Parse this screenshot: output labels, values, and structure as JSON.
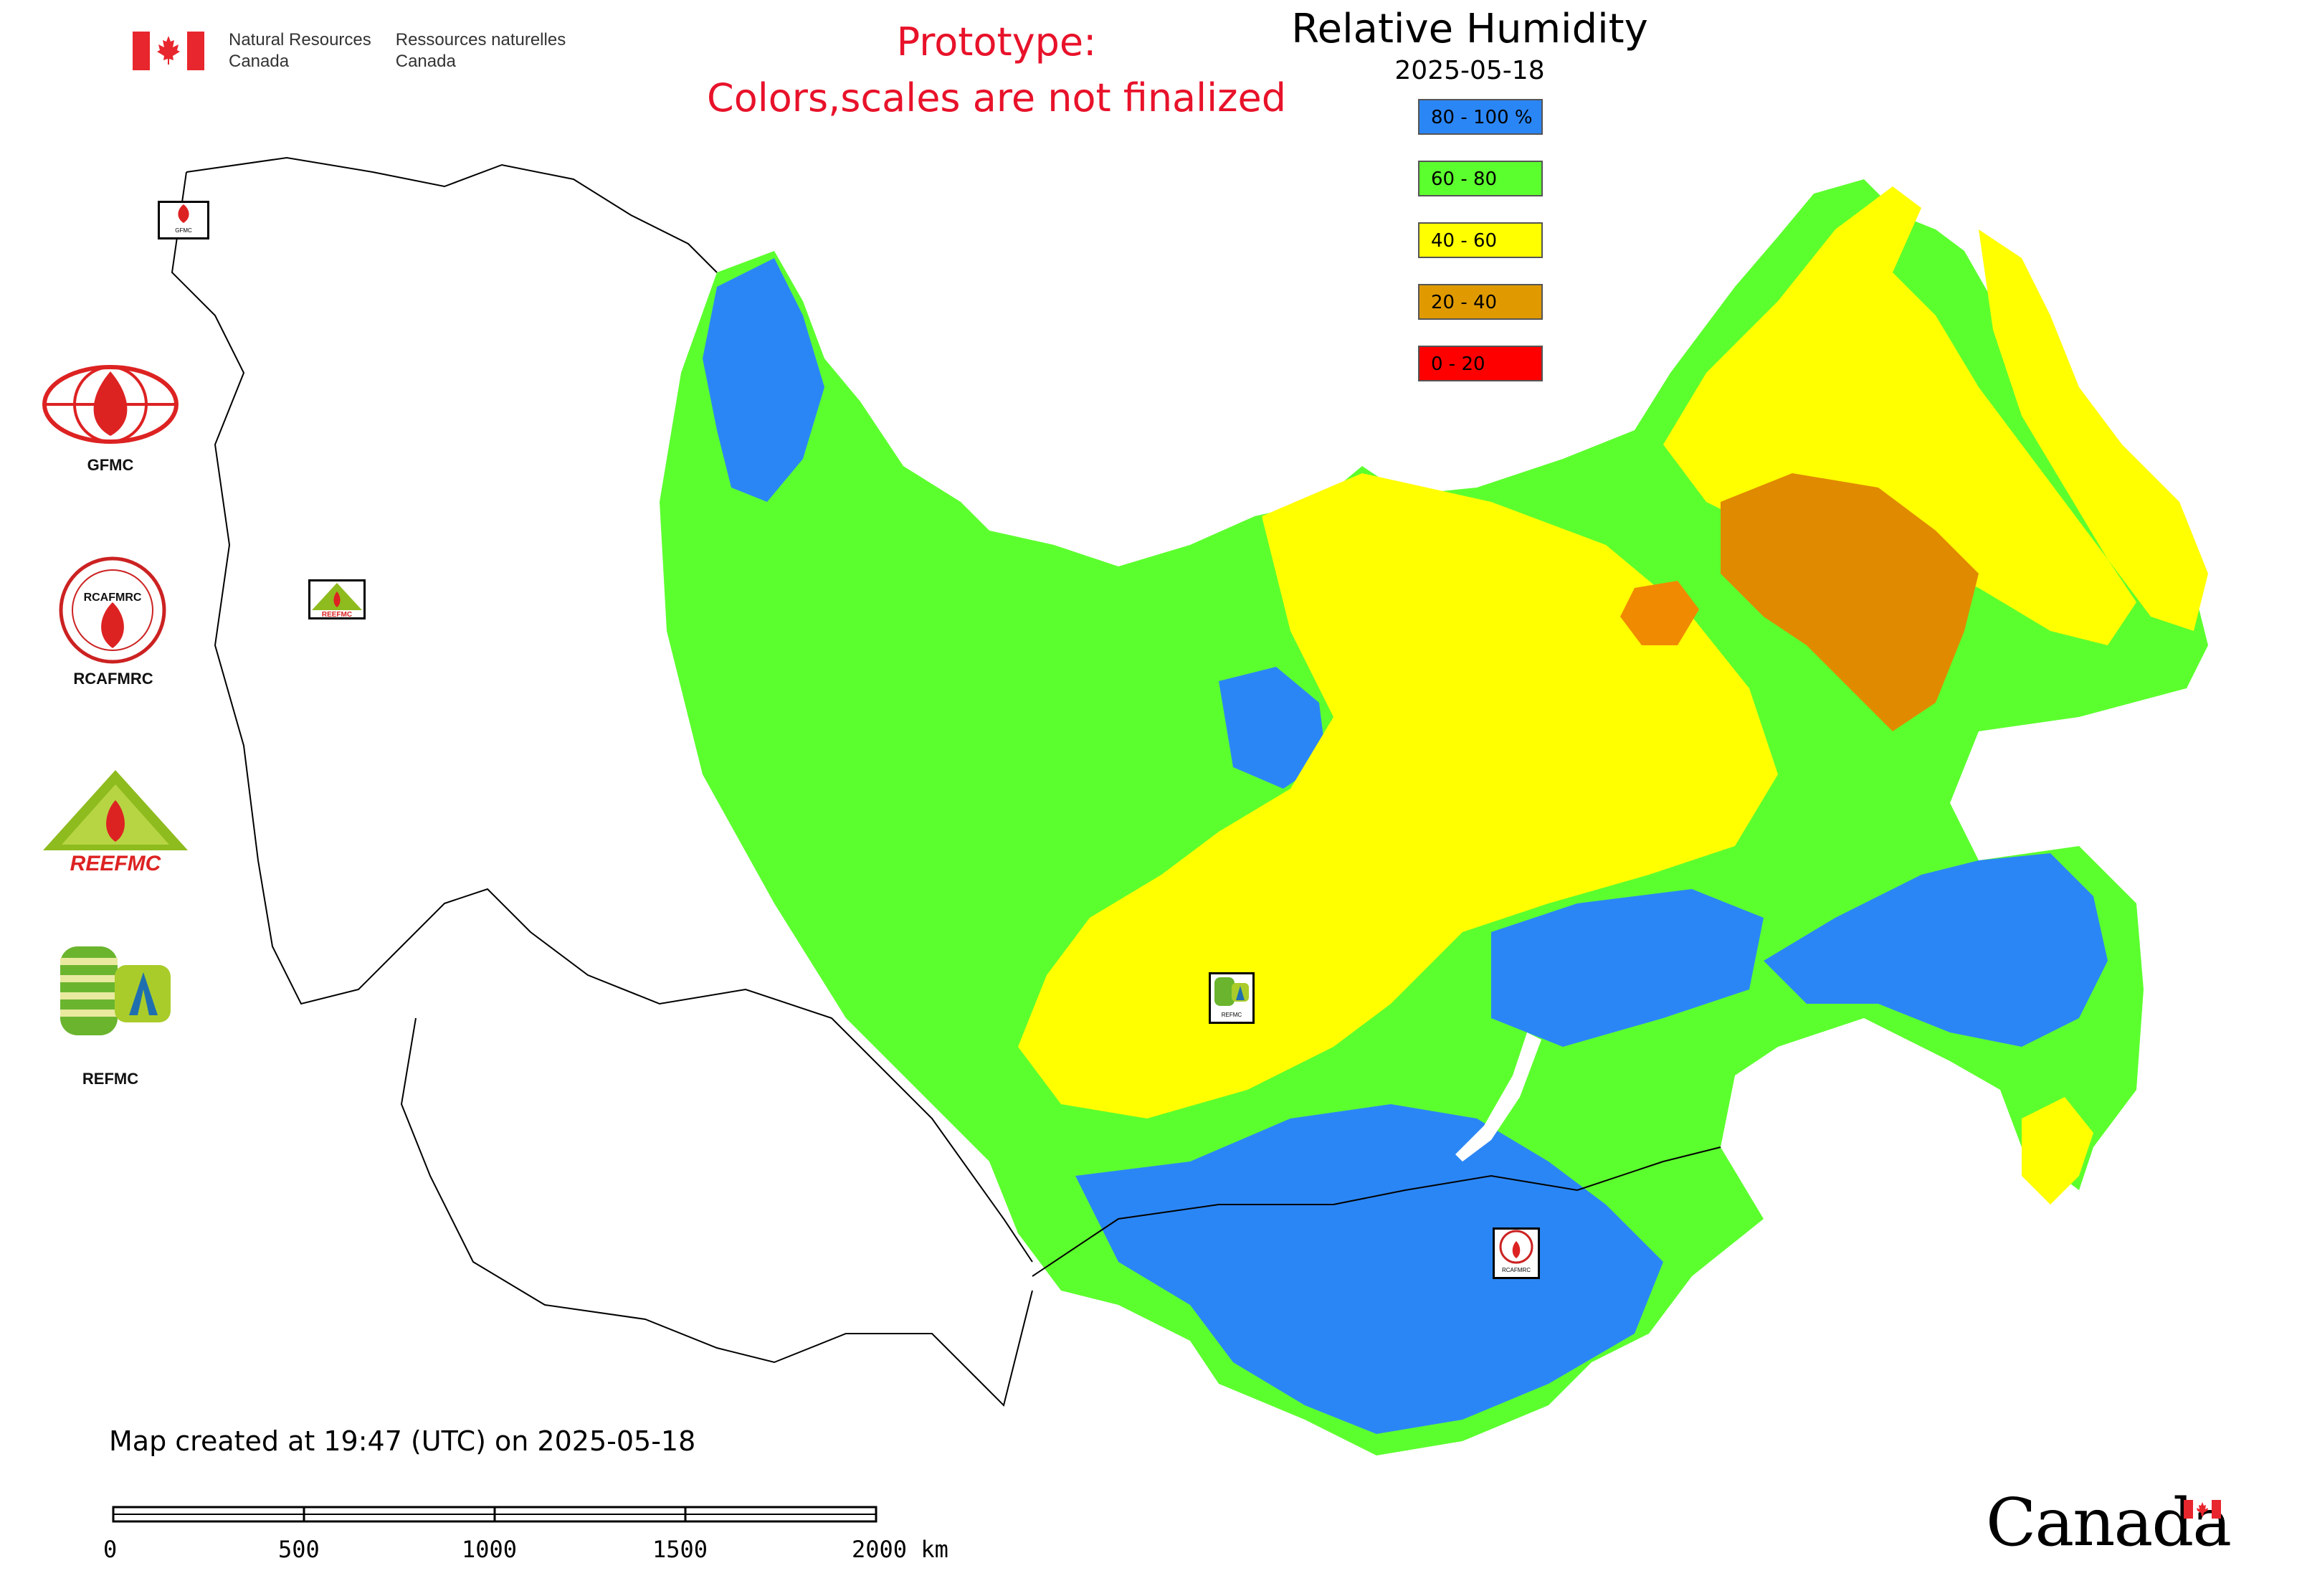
{
  "header": {
    "agency_en_line1": "Natural Resources",
    "agency_en_line2": "Canada",
    "agency_fr_line1": "Ressources naturelles",
    "agency_fr_line2": "Canada",
    "prototype_line1": "Prototype:",
    "prototype_line2": "Colors,scales are not finalized"
  },
  "map": {
    "title": "Relative Humidity",
    "date": "2025-05-18",
    "legend": [
      {
        "label": "80 - 100 %",
        "color": "#2b86f5"
      },
      {
        "label": "60 - 80",
        "color": "#5cff2e"
      },
      {
        "label": "40 - 60",
        "color": "#ffff00"
      },
      {
        "label": "20 - 40",
        "color": "#e09a00"
      },
      {
        "label": "0 - 20",
        "color": "#ff0000"
      }
    ],
    "created_text": "Map created at 19:47 (UTC) on 2025-05-18",
    "scale_labels": [
      "0",
      "500",
      "1000",
      "1500",
      "2000 km"
    ]
  },
  "logos": [
    {
      "name": "GFMC",
      "icon": "flame-globe-icon"
    },
    {
      "name": "RCAFMRC",
      "icon": "flame-seal-icon",
      "seal_text": "RCAFMRC"
    },
    {
      "name": "REEFMC",
      "icon": "flame-triangle-icon",
      "wordmark": "REEFMC"
    },
    {
      "name": "REFMC",
      "icon": "sigma-leaf-icon"
    }
  ],
  "map_markers": [
    {
      "label": "GFMC"
    },
    {
      "label": "REEFMC"
    },
    {
      "label": "REFMC"
    },
    {
      "label": "RCAFMRC"
    }
  ],
  "footer": {
    "wordmark": "Canada"
  },
  "colors": {
    "prototype_text": "#e8122a",
    "blue": "#2b86f5",
    "green": "#5cff2e",
    "yellow": "#ffff00",
    "orange": "#e09a00",
    "red": "#ff0000"
  }
}
